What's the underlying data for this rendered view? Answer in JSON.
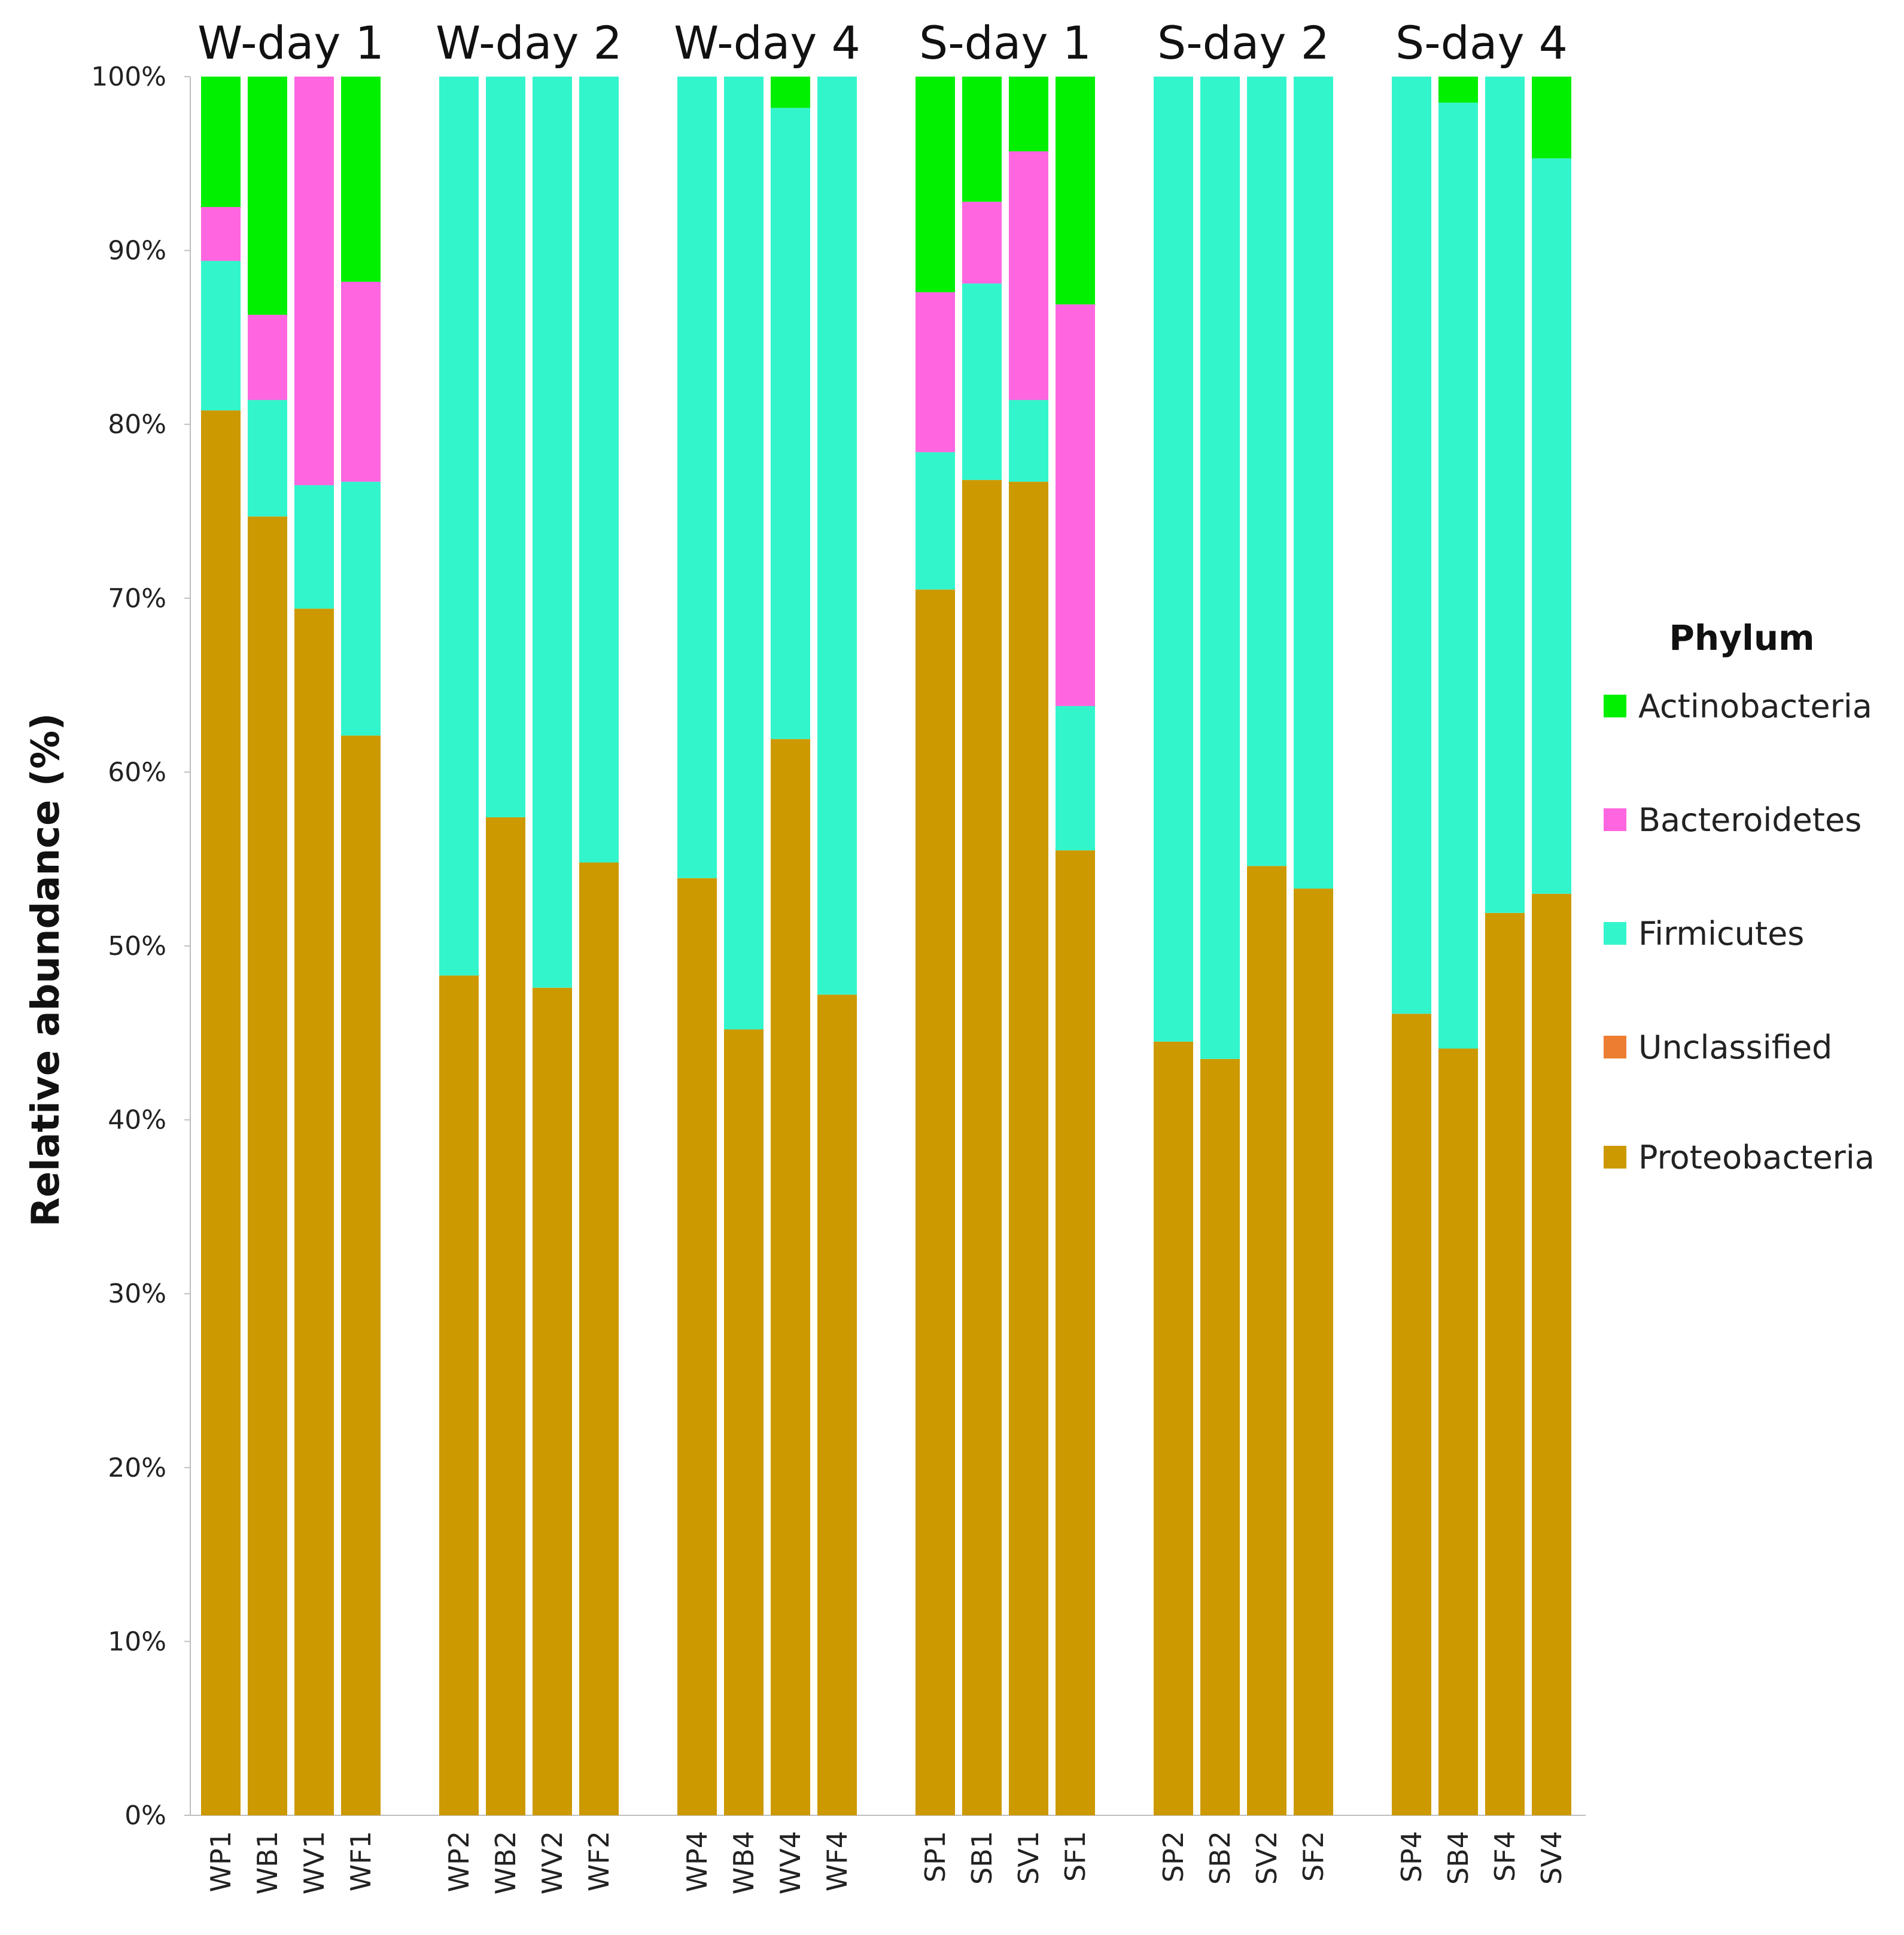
{
  "chart_data": {
    "type": "bar",
    "stacked": true,
    "ylabel": "Relative abundance (%)",
    "ylim": [
      0,
      100
    ],
    "y_ticks": [
      "0%",
      "10%",
      "20%",
      "30%",
      "40%",
      "50%",
      "60%",
      "70%",
      "80%",
      "90%",
      "100%"
    ],
    "groups": [
      {
        "label": "W-day 1",
        "categories": [
          "WP1",
          "WB1",
          "WV1",
          "WF1"
        ]
      },
      {
        "label": "W-day 2",
        "categories": [
          "WP2",
          "WB2",
          "WV2",
          "WF2"
        ]
      },
      {
        "label": "W-day 4",
        "categories": [
          "WP4",
          "WB4",
          "WV4",
          "WF4"
        ]
      },
      {
        "label": "S-day 1",
        "categories": [
          "SP1",
          "SB1",
          "SV1",
          "SF1"
        ]
      },
      {
        "label": "S-day 2",
        "categories": [
          "SP2",
          "SB2",
          "SV2",
          "SF2"
        ]
      },
      {
        "label": "S-day 4",
        "categories": [
          "SP4",
          "SB4",
          "SF4",
          "SV4"
        ]
      }
    ],
    "legend_title": "Phylum",
    "legend_position": "right",
    "series": [
      {
        "name": "Proteobacteria",
        "color": "#CC9900",
        "values": [
          80.8,
          74.7,
          69.4,
          62.1,
          48.3,
          57.4,
          47.6,
          54.8,
          53.9,
          45.2,
          61.9,
          47.2,
          70.5,
          76.8,
          76.7,
          55.5,
          44.5,
          43.5,
          54.6,
          53.3,
          46.1,
          44.1,
          51.9,
          53.0
        ]
      },
      {
        "name": "Unclassified",
        "color": "#ED7D31",
        "values": [
          0,
          0,
          0,
          0,
          0,
          0,
          0,
          0,
          0,
          0,
          0,
          0,
          0,
          0,
          0,
          0,
          0,
          0,
          0,
          0,
          0,
          0,
          0,
          0
        ]
      },
      {
        "name": "Firmicutes",
        "color": "#33F5CC",
        "values": [
          8.6,
          6.7,
          7.1,
          14.6,
          51.7,
          42.6,
          52.4,
          45.2,
          46.1,
          54.8,
          36.3,
          52.8,
          7.9,
          11.3,
          4.7,
          8.3,
          55.5,
          56.5,
          45.4,
          46.7,
          53.9,
          54.4,
          48.1,
          42.3
        ]
      },
      {
        "name": "Bacteroidetes",
        "color": "#FF66E0",
        "values": [
          3.1,
          4.9,
          23.5,
          11.5,
          0,
          0,
          0,
          0,
          0,
          0,
          0,
          0,
          9.2,
          4.7,
          14.3,
          23.1,
          0,
          0,
          0,
          0,
          0,
          0,
          0,
          0
        ]
      },
      {
        "name": "Actinobacteria",
        "color": "#00F000",
        "values": [
          7.5,
          13.7,
          0,
          11.8,
          0,
          0,
          0,
          0,
          0,
          0,
          1.8,
          0,
          12.4,
          7.2,
          4.3,
          13.1,
          0,
          0,
          0,
          0,
          0,
          1.5,
          0,
          4.7
        ]
      }
    ],
    "legend_order": [
      "Actinobacteria",
      "Bacteroidetes",
      "Firmicutes",
      "Unclassified",
      "Proteobacteria"
    ]
  }
}
